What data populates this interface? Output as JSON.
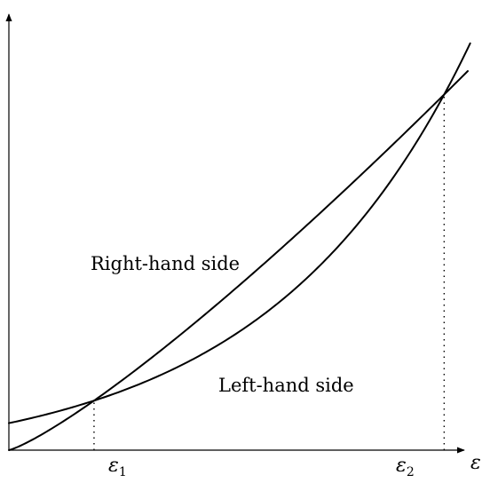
{
  "chart_data": {
    "type": "line",
    "title": "",
    "xlabel": "ε",
    "ylabel": "",
    "grid": false,
    "legend": "none",
    "xlim": [
      0,
      1
    ],
    "ylim": [
      0,
      1
    ],
    "series": [
      {
        "name": "Right-hand side",
        "curve_shape": "power-law-1.6",
        "points": [
          [
            0.0,
            0.0
          ],
          [
            0.18,
            0.11
          ],
          [
            0.92,
            0.79
          ],
          [
            0.97,
            0.86
          ]
        ]
      },
      {
        "name": "Left-hand side",
        "curve_shape": "intercept-exp",
        "points": [
          [
            0.0,
            0.06
          ],
          [
            0.18,
            0.11
          ],
          [
            0.92,
            0.79
          ],
          [
            0.975,
            1.0
          ]
        ]
      }
    ],
    "intersections": [
      {
        "label_base": "ε",
        "label_sub": "1",
        "x": 0.18,
        "y": 0.11
      },
      {
        "label_base": "ε",
        "label_sub": "2",
        "x": 0.92,
        "y": 0.79
      }
    ],
    "colors": {
      "line": "#000000",
      "background": "#ffffff"
    }
  }
}
